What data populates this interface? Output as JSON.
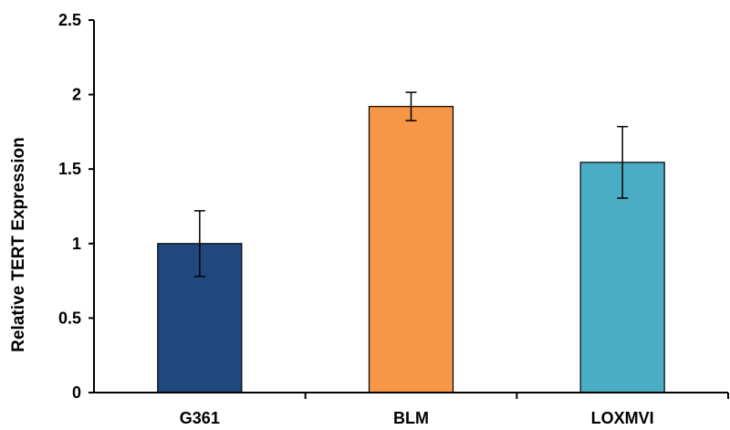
{
  "chart_data": {
    "type": "bar",
    "title": "",
    "xlabel": "",
    "ylabel": "Relative TERT Expression",
    "ylim": [
      0,
      2.5
    ],
    "yticks": [
      0,
      0.5,
      1,
      1.5,
      2,
      2.5
    ],
    "ytick_labels": [
      "0",
      "0.5",
      "1",
      "1.5",
      "2",
      "2.5"
    ],
    "grid": false,
    "legend": false,
    "categories": [
      "G361",
      "BLM",
      "LOXMVI"
    ],
    "values": [
      1.0,
      1.92,
      1.545
    ],
    "error": [
      0.22,
      0.095,
      0.24
    ],
    "colors": [
      "#1F497D",
      "#F79646",
      "#4BACC6"
    ]
  }
}
